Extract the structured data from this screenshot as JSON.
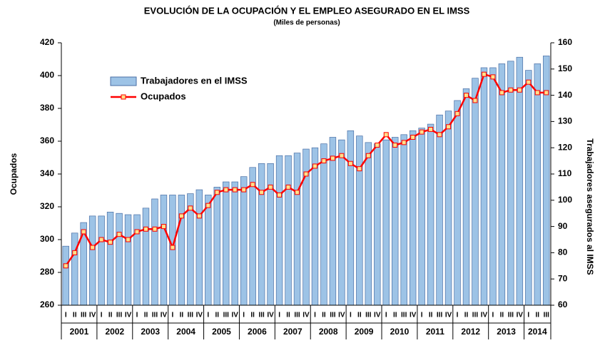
{
  "chart_data": {
    "type": "bar-line",
    "title": "EVOLUCIÓN DE LA OCUPACIÓN Y EL EMPLEO ASEGURADO EN EL IMSS",
    "subtitle": "(Miles de personas)",
    "y_label": "Ocupados",
    "y2_label": "Trabajadores asegurados al IMSS",
    "categories": [
      "I",
      "II",
      "III",
      "IV",
      "I",
      "II",
      "III",
      "IV",
      "I",
      "II",
      "III",
      "IV",
      "I",
      "II",
      "III",
      "IV",
      "I",
      "II",
      "III",
      "IV",
      "I",
      "II",
      "III",
      "IV",
      "I",
      "II",
      "III",
      "IV",
      "I",
      "II",
      "III",
      "IV",
      "I",
      "II",
      "III",
      "IV",
      "I",
      "II",
      "III",
      "IV",
      "I",
      "II",
      "III",
      "IV",
      "I",
      "II",
      "III",
      "IV",
      "I",
      "II",
      "III",
      "IV",
      "I",
      "II",
      "III"
    ],
    "years": [
      {
        "label": "2001",
        "quarters": 4
      },
      {
        "label": "2002",
        "quarters": 4
      },
      {
        "label": "2003",
        "quarters": 4
      },
      {
        "label": "2004",
        "quarters": 4
      },
      {
        "label": "2005",
        "quarters": 4
      },
      {
        "label": "2006",
        "quarters": 4
      },
      {
        "label": "2007",
        "quarters": 4
      },
      {
        "label": "2008",
        "quarters": 4
      },
      {
        "label": "2009",
        "quarters": 4
      },
      {
        "label": "2010",
        "quarters": 4
      },
      {
        "label": "2011",
        "quarters": 4
      },
      {
        "label": "2012",
        "quarters": 4
      },
      {
        "label": "2013",
        "quarters": 4
      },
      {
        "label": "2014",
        "quarters": 3
      }
    ],
    "series": [
      {
        "name": "Trabajadores en el IMSS",
        "type": "bar",
        "axis": "y2",
        "color": "#9dc3e6",
        "stroke": "#4a6fa5",
        "values": [
          82.5,
          87.5,
          91.5,
          94,
          94,
          95.5,
          95,
          94.5,
          94.5,
          97,
          100.5,
          102,
          102,
          102,
          102.5,
          104,
          102,
          105,
          107,
          107,
          109,
          112.5,
          114,
          114,
          117,
          117,
          118,
          119.5,
          120,
          121.5,
          124,
          123,
          126.5,
          124.5,
          122,
          121.5,
          123,
          124,
          125,
          126.5,
          127.5,
          129,
          132.5,
          134,
          138,
          142.5,
          146.5,
          150.5,
          150.5,
          152,
          153,
          154.5,
          149.5,
          152,
          155
        ]
      },
      {
        "name": "Ocupados",
        "type": "line",
        "axis": "y",
        "color": "#ff0000",
        "marker_color": "#ffe08a",
        "values": [
          284,
          292,
          304.8,
          295.2,
          300,
          298.4,
          303.2,
          300,
          304.8,
          306.4,
          306.4,
          308,
          295.2,
          314.4,
          319.2,
          314.4,
          320.8,
          328.8,
          330.4,
          330.4,
          330.4,
          333.6,
          328.8,
          332,
          327.2,
          332,
          328.8,
          340,
          344.8,
          348,
          349.6,
          351.2,
          346.4,
          343.2,
          351.2,
          357.6,
          364,
          357.6,
          359.2,
          362.4,
          365.6,
          367.2,
          364,
          368.8,
          376.8,
          388,
          384.8,
          400.8,
          399.2,
          389.6,
          391.2,
          391.2,
          396,
          389.6,
          389.6
        ]
      }
    ],
    "ylim": [
      260,
      420
    ],
    "yticks": [
      260,
      280,
      300,
      320,
      340,
      360,
      380,
      400,
      420
    ],
    "y2lim": [
      60,
      160
    ],
    "y2ticks": [
      60,
      70,
      80,
      90,
      100,
      110,
      120,
      130,
      140,
      150,
      160
    ],
    "legend": "upper left",
    "grid": false
  }
}
